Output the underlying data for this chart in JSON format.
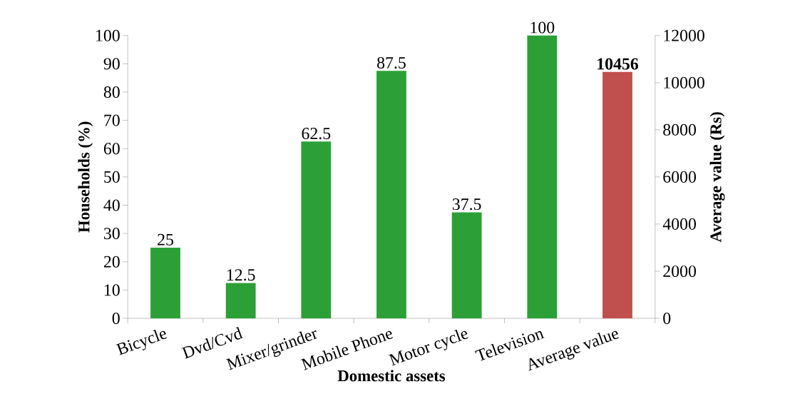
{
  "chart_data": {
    "type": "bar",
    "xlabel": "Domestic assets",
    "ylabel": "Households (%)",
    "y2label": "Average value (Rs)",
    "categories": [
      "Bicycle",
      "Dvd/Cvd",
      "Mixer/grinder",
      "Mobile Phone",
      "Motor cycle",
      "Television",
      "Average value"
    ],
    "series": [
      {
        "color": "#2ca037",
        "axis": "y",
        "values": [
          25,
          12.5,
          62.5,
          87.5,
          37.5,
          100,
          null
        ],
        "value_labels": [
          "25",
          "12.5",
          "62.5",
          "87.5",
          "37.5",
          "100",
          null
        ]
      },
      {
        "color": "#c0504d",
        "axis": "y2",
        "values": [
          null,
          null,
          null,
          null,
          null,
          null,
          10456
        ],
        "value_labels": [
          null,
          null,
          null,
          null,
          null,
          null,
          "**10456**"
        ]
      }
    ],
    "ylim": [
      0,
      100
    ],
    "yticks": [
      0,
      10,
      20,
      30,
      40,
      50,
      60,
      70,
      80,
      90,
      100
    ],
    "y2lim": [
      0,
      12000
    ],
    "y2ticks": [
      0,
      2000,
      4000,
      6000,
      8000,
      10000,
      12000
    ]
  }
}
